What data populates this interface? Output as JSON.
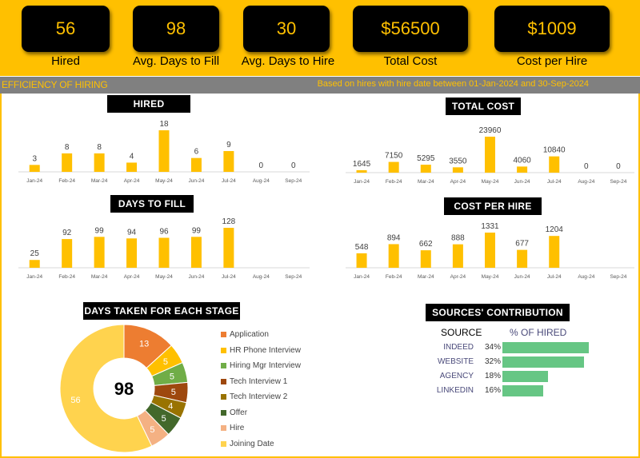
{
  "kpis": [
    {
      "value": "56",
      "label": "Hired"
    },
    {
      "value": "98",
      "label": "Avg. Days to Fill"
    },
    {
      "value": "30",
      "label": "Avg. Days to Hire"
    },
    {
      "value": "$56500",
      "label": "Total Cost"
    },
    {
      "value": "$1009",
      "label": "Cost per Hire"
    }
  ],
  "band": {
    "title": "EFFICIENCY OF HIRING",
    "note": "Based on hires with hire date between 01-Jan-2024 and 30-Sep-2024"
  },
  "colors": {
    "accent": "#FFC000",
    "band": "#808080",
    "source_bar": "#66C684"
  },
  "chart_data": [
    {
      "id": "hired",
      "type": "bar",
      "title": "HIRED",
      "categories": [
        "Jan-24",
        "Feb-24",
        "Mar-24",
        "Apr-24",
        "May-24",
        "Jun-24",
        "Jul-24",
        "Aug-24",
        "Sep-24"
      ],
      "values": [
        3,
        8,
        8,
        4,
        18,
        6,
        9,
        0,
        0
      ]
    },
    {
      "id": "days_to_fill",
      "type": "bar",
      "title": "DAYS TO FILL",
      "categories": [
        "Jan-24",
        "Feb-24",
        "Mar-24",
        "Apr-24",
        "May-24",
        "Jun-24",
        "Jul-24",
        "Aug-24",
        "Sep-24"
      ],
      "values": [
        25,
        92,
        99,
        94,
        96,
        99,
        128,
        null,
        null
      ]
    },
    {
      "id": "total_cost",
      "type": "bar",
      "title": "TOTAL COST",
      "categories": [
        "Jan-24",
        "Feb-24",
        "Mar-24",
        "Apr-24",
        "May-24",
        "Jun-24",
        "Jul-24",
        "Aug-24",
        "Sep-24"
      ],
      "values": [
        1645,
        7150,
        5295,
        3550,
        23960,
        4060,
        10840,
        0,
        0
      ]
    },
    {
      "id": "cost_per_hire",
      "type": "bar",
      "title": "COST PER HIRE",
      "categories": [
        "Jan-24",
        "Feb-24",
        "Mar-24",
        "Apr-24",
        "May-24",
        "Jun-24",
        "Jul-24",
        "Aug-24",
        "Sep-24"
      ],
      "values": [
        548,
        894,
        662,
        888,
        1331,
        677,
        1204,
        null,
        null
      ]
    },
    {
      "id": "stages",
      "type": "pie",
      "title": "DAYS TAKEN FOR EACH STAGE",
      "center_label": "98",
      "labels": [
        "Application",
        "HR Phone Interview",
        "Hiring Mgr Interview",
        "Tech Interview 1",
        "Tech Interview 2",
        "Offer",
        "Hire",
        "Joining Date"
      ],
      "values": [
        13,
        5,
        5,
        5,
        4,
        5,
        5,
        56
      ],
      "colors": [
        "#ED7D31",
        "#FFC000",
        "#70AD47",
        "#9E480E",
        "#997300",
        "#43682B",
        "#F4B183",
        "#FFD34E"
      ],
      "legend": "right"
    }
  ],
  "sources": {
    "title": "SOURCES' CONTRIBUTION",
    "col_source": "SOURCE",
    "col_pct": "% OF HIRED",
    "rows": [
      {
        "name": "INDEED",
        "pct_label": "34%",
        "pct": 34
      },
      {
        "name": "WEBSITE",
        "pct_label": "32%",
        "pct": 32
      },
      {
        "name": "AGENCY",
        "pct_label": "18%",
        "pct": 18
      },
      {
        "name": "LINKEDIN",
        "pct_label": "16%",
        "pct": 16
      }
    ]
  }
}
